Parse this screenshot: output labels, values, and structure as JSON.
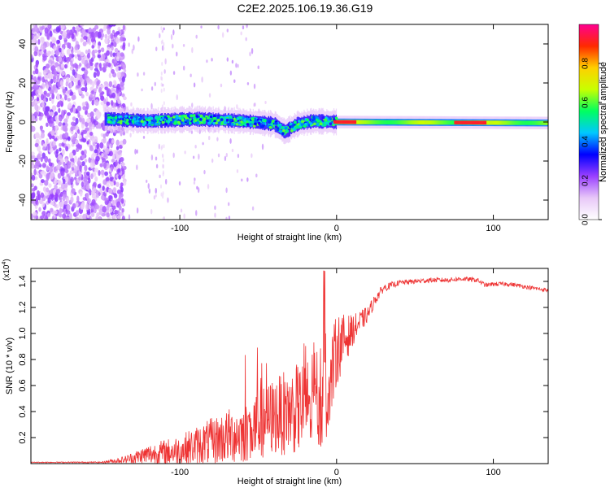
{
  "title": "C2E2.2025.106.19.36.G19",
  "chart_data": [
    {
      "type": "heatmap",
      "xlabel": "Height of straight line (km)",
      "ylabel": "Frequency (Hz)",
      "xlim": [
        -195,
        135
      ],
      "ylim": [
        -50,
        50
      ],
      "xticks": [
        -100,
        0,
        100
      ],
      "yticks": [
        -40,
        -20,
        0,
        20,
        40
      ],
      "colorbar": {
        "label": "Normalized spectral amplitude",
        "range": [
          0,
          1
        ],
        "ticks": [
          0.0,
          0.2,
          0.4,
          0.6,
          0.8
        ],
        "colors": [
          "#ffffff",
          "#e8c8f8",
          "#9a40ff",
          "#0000ff",
          "#00c8ff",
          "#00ff60",
          "#c8ff00",
          "#ffd000",
          "#ff2a00",
          "#ff0090"
        ]
      },
      "ridge": {
        "center_hz": [
          [
            -145,
            1.5
          ],
          [
            -120,
            0.5
          ],
          [
            -90,
            1.5
          ],
          [
            -60,
            0.5
          ],
          [
            -40,
            -1
          ],
          [
            -33,
            -5
          ],
          [
            -25,
            -1
          ],
          [
            -15,
            0.5
          ],
          [
            0,
            0
          ],
          [
            135,
            -0.5
          ]
        ],
        "dominant_segments": [
          {
            "x": [
              -2,
              12
            ],
            "amplitude": 1.0
          },
          {
            "x": [
              75,
              95
            ],
            "amplitude": 1.0
          }
        ]
      }
    },
    {
      "type": "line",
      "xlabel": "Height of straight line (km)",
      "ylabel": "SNR (10 * v/v)",
      "ymultiplier": "(x10^4)",
      "xlim": [
        -195,
        135
      ],
      "ylim": [
        0,
        1.5
      ],
      "xticks": [
        -100,
        0,
        100
      ],
      "yticks": [
        0.2,
        0.4,
        0.6,
        0.8,
        1.0,
        1.2,
        1.4
      ],
      "series": [
        {
          "color": "#ee3333",
          "trend_x": [
            -195,
            -150,
            -135,
            -120,
            -100,
            -80,
            -60,
            -50,
            -40,
            -30,
            -20,
            -10,
            -5,
            0,
            10,
            20,
            25,
            30,
            40,
            50,
            60,
            70,
            80,
            90,
            95,
            100,
            110,
            120,
            135
          ],
          "trend_y": [
            0.01,
            0.01,
            0.03,
            0.07,
            0.1,
            0.17,
            0.24,
            0.3,
            0.36,
            0.4,
            0.44,
            0.5,
            0.55,
            0.88,
            1.02,
            1.15,
            1.27,
            1.35,
            1.39,
            1.4,
            1.41,
            1.41,
            1.42,
            1.41,
            1.37,
            1.38,
            1.38,
            1.36,
            1.33
          ],
          "noise_x": [
            -195,
            -150,
            -135,
            -120,
            -100,
            -80,
            -60,
            -40,
            -20,
            -10,
            0,
            10,
            20,
            30,
            40,
            135
          ],
          "noise_y": [
            0.003,
            0.005,
            0.03,
            0.08,
            0.12,
            0.18,
            0.24,
            0.3,
            0.36,
            0.4,
            0.28,
            0.12,
            0.06,
            0.03,
            0.02,
            0.015
          ]
        }
      ]
    }
  ]
}
